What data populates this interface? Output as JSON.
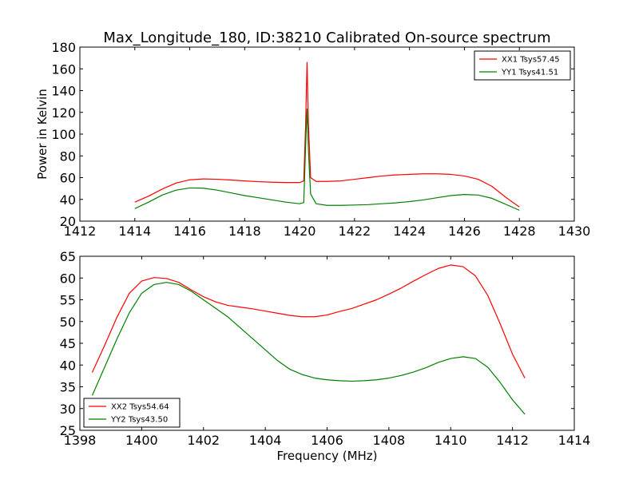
{
  "chart_data": [
    {
      "type": "line",
      "title": "Max_Longitude_180, ID:38210 Calibrated On-source spectrum",
      "xlabel": "",
      "ylabel": "Power in Kelvin",
      "xlim": [
        1412,
        1430
      ],
      "ylim": [
        20,
        180
      ],
      "xticks": [
        "1412",
        "1414",
        "1416",
        "1418",
        "1420",
        "1422",
        "1424",
        "1426",
        "1428",
        "1430"
      ],
      "yticks": [
        "20",
        "40",
        "60",
        "80",
        "100",
        "120",
        "140",
        "160",
        "180"
      ],
      "grid": false,
      "legend_position": "top-right",
      "series": [
        {
          "name": "XX1 Tsys57.45",
          "color": "#ff0000",
          "points": [
            [
              1414.0,
              37.5
            ],
            [
              1414.5,
              43.0
            ],
            [
              1415.0,
              49.5
            ],
            [
              1415.5,
              55.0
            ],
            [
              1416.0,
              58.0
            ],
            [
              1416.5,
              58.8
            ],
            [
              1417.0,
              58.5
            ],
            [
              1417.5,
              57.8
            ],
            [
              1418.0,
              57.0
            ],
            [
              1418.5,
              56.3
            ],
            [
              1419.0,
              55.8
            ],
            [
              1419.5,
              55.5
            ],
            [
              1420.0,
              55.5
            ],
            [
              1420.15,
              57.0
            ],
            [
              1420.22,
              110.0
            ],
            [
              1420.27,
              166.0
            ],
            [
              1420.32,
              110.0
            ],
            [
              1420.4,
              60.0
            ],
            [
              1420.6,
              56.5
            ],
            [
              1421.0,
              56.5
            ],
            [
              1421.5,
              57.0
            ],
            [
              1422.0,
              58.5
            ],
            [
              1422.5,
              60.0
            ],
            [
              1423.0,
              61.5
            ],
            [
              1423.5,
              62.5
            ],
            [
              1424.0,
              63.0
            ],
            [
              1424.5,
              63.5
            ],
            [
              1425.0,
              63.5
            ],
            [
              1425.5,
              63.0
            ],
            [
              1426.0,
              61.5
            ],
            [
              1426.5,
              58.5
            ],
            [
              1427.0,
              52.0
            ],
            [
              1427.5,
              42.0
            ],
            [
              1428.0,
              33.0
            ]
          ]
        },
        {
          "name": "YY1 Tsys41.51",
          "color": "#008000",
          "points": [
            [
              1414.0,
              31.5
            ],
            [
              1414.5,
              37.5
            ],
            [
              1415.0,
              44.0
            ],
            [
              1415.5,
              48.5
            ],
            [
              1416.0,
              50.5
            ],
            [
              1416.5,
              50.3
            ],
            [
              1417.0,
              48.5
            ],
            [
              1417.5,
              46.0
            ],
            [
              1418.0,
              43.5
            ],
            [
              1418.5,
              41.5
            ],
            [
              1419.0,
              39.5
            ],
            [
              1419.5,
              37.5
            ],
            [
              1420.0,
              36.0
            ],
            [
              1420.15,
              37.0
            ],
            [
              1420.22,
              90.0
            ],
            [
              1420.27,
              123.0
            ],
            [
              1420.33,
              80.0
            ],
            [
              1420.4,
              45.0
            ],
            [
              1420.6,
              36.0
            ],
            [
              1421.0,
              34.5
            ],
            [
              1421.5,
              34.5
            ],
            [
              1422.0,
              34.8
            ],
            [
              1422.5,
              35.2
            ],
            [
              1423.0,
              36.0
            ],
            [
              1423.5,
              36.8
            ],
            [
              1424.0,
              38.0
            ],
            [
              1424.5,
              39.5
            ],
            [
              1425.0,
              41.5
            ],
            [
              1425.5,
              43.5
            ],
            [
              1426.0,
              44.5
            ],
            [
              1426.5,
              44.0
            ],
            [
              1427.0,
              41.0
            ],
            [
              1427.5,
              35.5
            ],
            [
              1428.0,
              30.0
            ]
          ]
        }
      ]
    },
    {
      "type": "line",
      "title": "",
      "xlabel": "Frequency (MHz)",
      "ylabel": "",
      "xlim": [
        1398,
        1414
      ],
      "ylim": [
        25,
        65
      ],
      "xticks": [
        "1398",
        "1400",
        "1402",
        "1404",
        "1406",
        "1408",
        "1410",
        "1412",
        "1414"
      ],
      "yticks": [
        "25",
        "30",
        "35",
        "40",
        "45",
        "50",
        "55",
        "60",
        "65"
      ],
      "grid": false,
      "legend_position": "bottom-left",
      "series": [
        {
          "name": "XX2 Tsys54.64",
          "color": "#ff0000",
          "points": [
            [
              1398.4,
              38.3
            ],
            [
              1398.8,
              44.5
            ],
            [
              1399.2,
              51.0
            ],
            [
              1399.6,
              56.5
            ],
            [
              1400.0,
              59.3
            ],
            [
              1400.4,
              60.1
            ],
            [
              1400.8,
              59.9
            ],
            [
              1401.2,
              59.0
            ],
            [
              1401.6,
              57.3
            ],
            [
              1402.0,
              55.7
            ],
            [
              1402.4,
              54.5
            ],
            [
              1402.8,
              53.7
            ],
            [
              1403.2,
              53.3
            ],
            [
              1403.6,
              52.9
            ],
            [
              1404.0,
              52.4
            ],
            [
              1404.4,
              51.9
            ],
            [
              1404.8,
              51.4
            ],
            [
              1405.2,
              51.1
            ],
            [
              1405.6,
              51.1
            ],
            [
              1406.0,
              51.5
            ],
            [
              1406.4,
              52.3
            ],
            [
              1406.8,
              53.0
            ],
            [
              1407.2,
              54.0
            ],
            [
              1407.6,
              55.0
            ],
            [
              1408.0,
              56.3
            ],
            [
              1408.4,
              57.7
            ],
            [
              1408.8,
              59.3
            ],
            [
              1409.2,
              60.8
            ],
            [
              1409.6,
              62.2
            ],
            [
              1410.0,
              63.0
            ],
            [
              1410.4,
              62.6
            ],
            [
              1410.8,
              60.5
            ],
            [
              1411.2,
              56.0
            ],
            [
              1411.6,
              49.5
            ],
            [
              1412.0,
              42.5
            ],
            [
              1412.4,
              37.0
            ]
          ]
        },
        {
          "name": "YY2 Tsys43.50",
          "color": "#008000",
          "points": [
            [
              1398.4,
              33.0
            ],
            [
              1398.8,
              39.5
            ],
            [
              1399.2,
              46.0
            ],
            [
              1399.6,
              52.0
            ],
            [
              1400.0,
              56.5
            ],
            [
              1400.4,
              58.5
            ],
            [
              1400.8,
              59.0
            ],
            [
              1401.2,
              58.5
            ],
            [
              1401.6,
              57.0
            ],
            [
              1402.0,
              55.0
            ],
            [
              1402.4,
              53.0
            ],
            [
              1402.8,
              51.0
            ],
            [
              1403.2,
              48.5
            ],
            [
              1403.6,
              46.0
            ],
            [
              1404.0,
              43.5
            ],
            [
              1404.4,
              41.0
            ],
            [
              1404.8,
              39.0
            ],
            [
              1405.2,
              37.8
            ],
            [
              1405.6,
              37.0
            ],
            [
              1406.0,
              36.6
            ],
            [
              1406.4,
              36.4
            ],
            [
              1406.8,
              36.3
            ],
            [
              1407.2,
              36.4
            ],
            [
              1407.6,
              36.6
            ],
            [
              1408.0,
              37.0
            ],
            [
              1408.4,
              37.6
            ],
            [
              1408.8,
              38.4
            ],
            [
              1409.2,
              39.4
            ],
            [
              1409.6,
              40.6
            ],
            [
              1410.0,
              41.5
            ],
            [
              1410.4,
              41.9
            ],
            [
              1410.8,
              41.5
            ],
            [
              1411.2,
              39.5
            ],
            [
              1411.6,
              36.0
            ],
            [
              1412.0,
              32.0
            ],
            [
              1412.4,
              28.7
            ]
          ]
        }
      ]
    }
  ]
}
